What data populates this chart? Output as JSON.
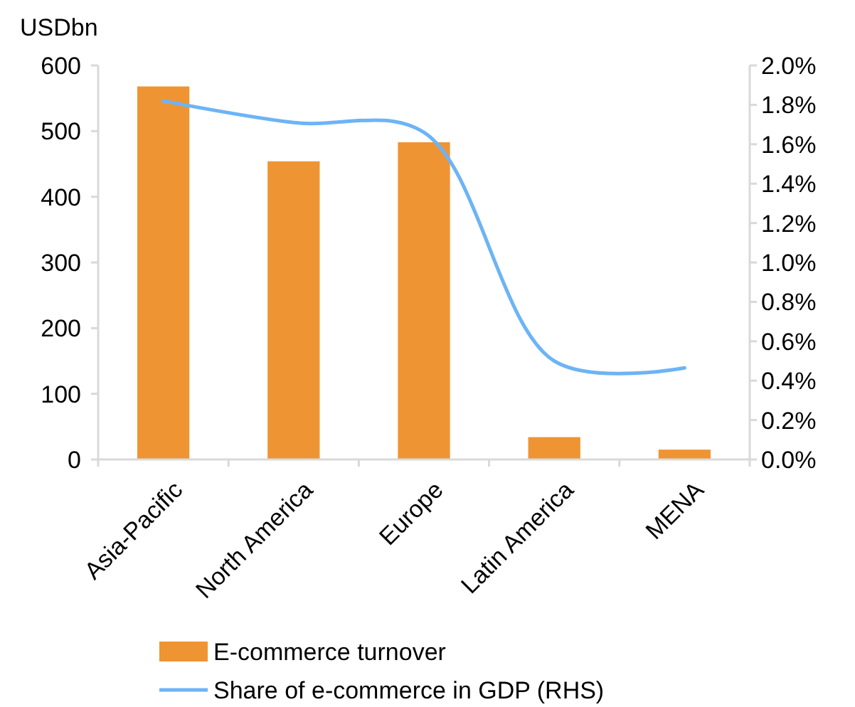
{
  "chart_data": {
    "type": "bar",
    "ylabel": "USDbn",
    "categories": [
      "Asia-Pacific",
      "North America",
      "Europe",
      "Latin America",
      "MENA"
    ],
    "series": [
      {
        "name": "E-commerce turnover",
        "color": "#ef9433",
        "values": [
          568,
          454,
          483,
          34,
          15
        ]
      },
      {
        "name": "Share of e-commerce in GDP (RHS)",
        "type": "line",
        "axis": "y2",
        "color": "#6cb4f5",
        "values": [
          1.82,
          1.71,
          1.66,
          0.5,
          0.465
        ]
      }
    ],
    "ylim": [
      0,
      600
    ],
    "yticks": [
      0,
      100,
      200,
      300,
      400,
      500,
      600
    ],
    "y2lim": [
      0,
      2
    ],
    "y2ticks": [
      {
        "value": 0,
        "label": "0.0%"
      },
      {
        "value": 0.2,
        "label": "0.2%"
      },
      {
        "value": 0.4,
        "label": "0.4%"
      },
      {
        "value": 0.6,
        "label": "0.6%"
      },
      {
        "value": 0.8,
        "label": "0.8%"
      },
      {
        "value": 1,
        "label": "1.0%"
      },
      {
        "value": 1.2,
        "label": "1.2%"
      },
      {
        "value": 1.4,
        "label": "1.4%"
      },
      {
        "value": 1.6,
        "label": "1.6%"
      },
      {
        "value": 1.8,
        "label": "1.8%"
      },
      {
        "value": 2,
        "label": "2.0%"
      }
    ],
    "grid": false,
    "legend": "bottom",
    "marker": "none"
  }
}
